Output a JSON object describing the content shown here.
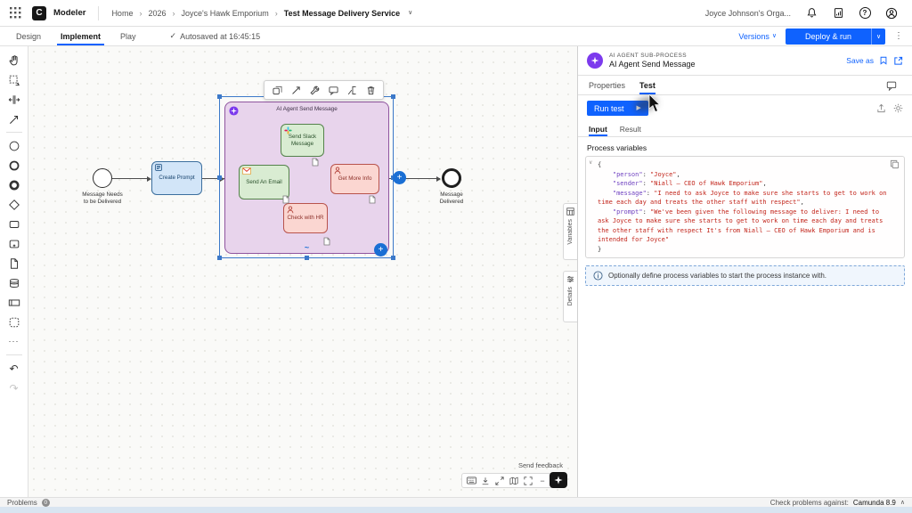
{
  "icons": {
    "chevron_down": "∨",
    "chevron_up": "∧",
    "breadcrumb_sep": "›",
    "kebab": "⋮",
    "more": "···",
    "undo": "↶",
    "redo": "↷",
    "minus": "−",
    "plus_zoom": "+",
    "plus": "+",
    "play": "▶",
    "check": "✓",
    "question": "?",
    "adhoc_marker": "~",
    "fold": "∨",
    "logo_letter": "C"
  },
  "header": {
    "app_name": "Modeler",
    "breadcrumbs": [
      "Home",
      "2026",
      "Joyce's Hawk Emporium",
      "Test Message Delivery Service"
    ],
    "org_name": "Joyce Johnson's Orga..."
  },
  "tabbar": {
    "design": "Design",
    "implement": "Implement",
    "play": "Play",
    "autosaved": "Autosaved at 16:45:15",
    "versions": "Versions",
    "deploy": "Deploy & run"
  },
  "diagram": {
    "start_label": "Message Needs\nto be Delivered",
    "create_prompt": "Create Prompt",
    "subprocess_title": "AI Agent Send Message",
    "task_slack": "Send Slack Message",
    "task_email": "Send An Email",
    "task_info": "Get More Info",
    "task_hr": "Check with HR",
    "end_label": "Message\nDelivered"
  },
  "canvas_controls": {
    "send_feedback": "Send feedback"
  },
  "side_tabs": {
    "variables": "Variables",
    "details": "Details"
  },
  "panel": {
    "type_label": "AI AGENT SUB-PROCESS",
    "title": "AI Agent Send Message",
    "save_as": "Save as",
    "tab_properties": "Properties",
    "tab_test": "Test",
    "run_test": "Run test",
    "tab_input": "Input",
    "tab_result": "Result",
    "variables_label": "Process variables",
    "info_text": "Optionally define process variables to start the process instance with.",
    "code": {
      "segments": [
        {
          "t": "{\n",
          "c": "p"
        },
        {
          "t": "    ",
          "c": "p"
        },
        {
          "t": "\"person\"",
          "c": "k"
        },
        {
          "t": ": ",
          "c": "p"
        },
        {
          "t": "\"Joyce\"",
          "c": "v"
        },
        {
          "t": ",\n",
          "c": "p"
        },
        {
          "t": "    ",
          "c": "p"
        },
        {
          "t": "\"sender\"",
          "c": "k"
        },
        {
          "t": ": ",
          "c": "p"
        },
        {
          "t": "\"Niall – CEO of Hawk Emporium\"",
          "c": "v"
        },
        {
          "t": ",\n",
          "c": "p"
        },
        {
          "t": "    ",
          "c": "p"
        },
        {
          "t": "\"message\"",
          "c": "k"
        },
        {
          "t": ": ",
          "c": "p"
        },
        {
          "t": "\"I need to ask Joyce to make sure she starts to get to work on time each day and treats the other staff with respect\"",
          "c": "v"
        },
        {
          "t": ",\n",
          "c": "p"
        },
        {
          "t": "    ",
          "c": "p"
        },
        {
          "t": "\"prompt\"",
          "c": "k"
        },
        {
          "t": ": ",
          "c": "p"
        },
        {
          "t": "\"We've been given the following message to deliver: I need to ask Joyce to make sure she starts to get to work on time each day and treats the other staff with respect It's from Niall – CEO of Hawk Emporium and is intended for Joyce\"",
          "c": "v"
        },
        {
          "t": "\n",
          "c": "p"
        },
        {
          "t": "}",
          "c": "p"
        }
      ]
    }
  },
  "statusbar": {
    "problems": "Problems",
    "problems_count": "0",
    "check_label": "Check problems against:",
    "engine_version": "Camunda 8.9"
  },
  "colors": {
    "accent": "#0f62fe",
    "selection": "#3c79c9",
    "subprocess_fill": "#e8d4ec",
    "subprocess_border": "#8f559f",
    "task_green_fill": "#d9ecd2",
    "task_pink_fill": "#fbd6d1",
    "task_blue_fill": "#d2e5f8",
    "ai_marker": "#7c3aed"
  }
}
